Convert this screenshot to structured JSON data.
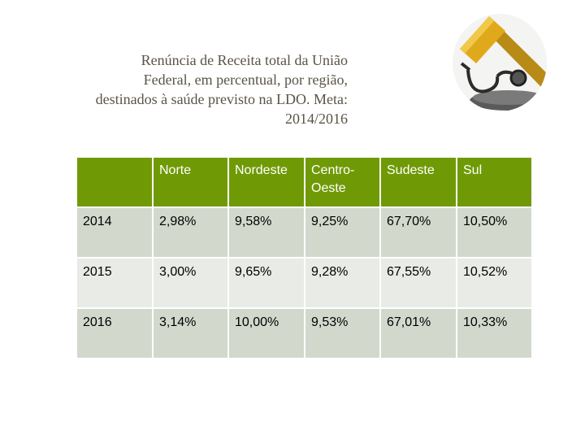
{
  "title_lines": [
    "Renúncia de Receita total da União",
    "Federal, em percentual, por região,",
    "destinados à saúde previsto na LDO. Meta:",
    "2014/2016"
  ],
  "emblem": {
    "icon": "gavel-stethoscope-icon",
    "colors": {
      "gavel": "#d9a21b",
      "handle": "#b88a16",
      "stethoscope": "#333333"
    }
  },
  "table": {
    "header": [
      "",
      "Norte",
      "Nordeste",
      "Centro-Oeste",
      "Sudeste",
      "Sul"
    ],
    "header_lines": {
      "centro_1": "Centro-",
      "centro_2": "Oeste"
    },
    "rows": [
      [
        "2014",
        "2,98%",
        "9,58%",
        "9,25%",
        "67,70%",
        "10,50%"
      ],
      [
        "2015",
        "3,00%",
        "9,65%",
        "9,28%",
        "67,55%",
        "10,52%"
      ],
      [
        "2016",
        "3,14%",
        "10,00%",
        "9,53%",
        "67,01%",
        "10,33%"
      ]
    ],
    "colors": {
      "header_bg": "#6f9a06",
      "row_dark": "#d2d9cc",
      "row_light": "#e8ebe6"
    }
  }
}
